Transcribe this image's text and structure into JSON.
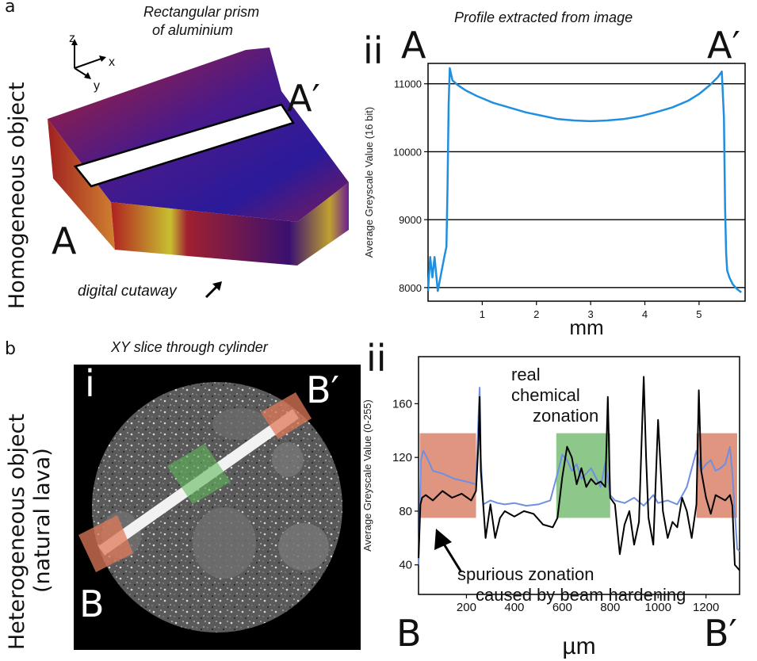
{
  "panels": {
    "a": {
      "letter": "a",
      "side_label": "Homogeneous object",
      "image_caption_line1": "Rectangular prism",
      "image_caption_line2": "of aluminium",
      "cutaway_label": "digital cutaway",
      "axis_z": "z",
      "axis_x": "x",
      "axis_y": "y",
      "point_A": "A",
      "point_A_prime": "A′",
      "chart_caption": "Profile extracted from image",
      "chart_roman": "ii"
    },
    "b": {
      "letter": "b",
      "side_label_line1": "Heterogeneous object",
      "side_label_line2": "(natural lava)",
      "image_caption": "XY slice through cylinder",
      "image_roman": "i",
      "point_B": "B",
      "point_B_prime": "B′",
      "chart_roman": "ii",
      "annotation_real_line1": "real",
      "annotation_real_line2": "chemical",
      "annotation_real_line3": "zonation",
      "annotation_spurious_line1": "spurious zonation",
      "annotation_spurious_line2": "caused by beam hardening"
    }
  },
  "colors": {
    "blue_line": "#1f8fdf",
    "lava_blue": "#6f8fe0",
    "highlight_orange": "#d9826a",
    "highlight_green": "#79bd75",
    "prism_dark": "#3a1070"
  },
  "chart_data": [
    {
      "type": "line",
      "ylabel": "Average Greyscale Value (16 bit)",
      "xlabel": "mm",
      "x_ticks": [
        "1",
        "2",
        "3",
        "4",
        "5"
      ],
      "y_ticks": [
        "8000",
        "9000",
        "10000",
        "11000"
      ],
      "xlim": [
        0,
        5.85
      ],
      "ylim": [
        7800,
        11300
      ],
      "gridlines": [
        8000,
        9000,
        10000,
        11000
      ],
      "series": [
        {
          "x": [
            0.0,
            0.04,
            0.08,
            0.12,
            0.18,
            0.24,
            0.3,
            0.34,
            0.36,
            0.38,
            0.4,
            0.45,
            0.55,
            0.7,
            0.9,
            1.2,
            1.5,
            1.8,
            2.1,
            2.4,
            2.7,
            3.0,
            3.3,
            3.6,
            3.9,
            4.2,
            4.5,
            4.8,
            5.0,
            5.2,
            5.35,
            5.42,
            5.46,
            5.48,
            5.5,
            5.52,
            5.56,
            5.62,
            5.7,
            5.78
          ],
          "y": [
            7950,
            8450,
            8150,
            8450,
            7950,
            8200,
            8450,
            8600,
            9500,
            10700,
            11230,
            11050,
            10980,
            10900,
            10820,
            10720,
            10650,
            10580,
            10530,
            10480,
            10460,
            10450,
            10460,
            10480,
            10520,
            10580,
            10650,
            10750,
            10850,
            10980,
            11100,
            11180,
            10500,
            9200,
            8500,
            8250,
            8150,
            8050,
            7980,
            7930
          ]
        }
      ]
    },
    {
      "type": "line",
      "ylabel": "Average Greyscale Value (0-255)",
      "xlabel": "µm",
      "x_ticks": [
        "200",
        "400",
        "600",
        "800",
        "1000",
        "1200"
      ],
      "y_ticks": [
        "40",
        "80",
        "120",
        "160"
      ],
      "xlim": [
        0,
        1340
      ],
      "ylim": [
        18,
        195
      ],
      "highlights": [
        {
          "x": [
            5,
            240
          ],
          "y": [
            75,
            138
          ],
          "color": "orange"
        },
        {
          "x": [
            575,
            800
          ],
          "y": [
            75,
            138
          ],
          "color": "green"
        },
        {
          "x": [
            1160,
            1330
          ],
          "y": [
            75,
            138
          ],
          "color": "orange"
        }
      ],
      "series": [
        {
          "color": "blue",
          "x": [
            0,
            10,
            20,
            40,
            60,
            100,
            150,
            200,
            240,
            250,
            255,
            260,
            270,
            300,
            330,
            360,
            400,
            450,
            500,
            550,
            580,
            600,
            620,
            640,
            660,
            680,
            700,
            720,
            740,
            760,
            780,
            800,
            820,
            860,
            900,
            940,
            980,
            1000,
            1040,
            1080,
            1120,
            1160,
            1180,
            1200,
            1220,
            1240,
            1260,
            1280,
            1300,
            1310,
            1320,
            1330,
            1340
          ],
          "y": [
            40,
            118,
            125,
            118,
            110,
            108,
            104,
            102,
            100,
            150,
            172,
            120,
            85,
            88,
            86,
            85,
            86,
            84,
            85,
            88,
            108,
            122,
            118,
            110,
            115,
            104,
            108,
            112,
            105,
            98,
            116,
            92,
            88,
            86,
            90,
            84,
            92,
            86,
            88,
            85,
            98,
            125,
            110,
            115,
            118,
            110,
            112,
            115,
            128,
            108,
            80,
            52,
            50
          ]
        },
        {
          "color": "black",
          "x": [
            0,
            8,
            15,
            30,
            60,
            100,
            140,
            180,
            220,
            240,
            250,
            255,
            260,
            280,
            300,
            320,
            340,
            360,
            400,
            440,
            480,
            520,
            560,
            580,
            600,
            620,
            640,
            660,
            680,
            700,
            720,
            740,
            760,
            780,
            790,
            800,
            820,
            840,
            860,
            880,
            900,
            920,
            940,
            950,
            960,
            980,
            1000,
            1020,
            1040,
            1060,
            1080,
            1100,
            1120,
            1140,
            1160,
            1170,
            1180,
            1200,
            1220,
            1240,
            1260,
            1280,
            1300,
            1310,
            1320,
            1330,
            1340
          ],
          "y": [
            45,
            85,
            90,
            92,
            88,
            95,
            90,
            93,
            88,
            95,
            130,
            165,
            110,
            60,
            85,
            60,
            75,
            80,
            76,
            80,
            78,
            70,
            68,
            75,
            105,
            128,
            120,
            100,
            112,
            98,
            104,
            100,
            102,
            98,
            165,
            90,
            85,
            48,
            70,
            80,
            55,
            72,
            180,
            120,
            75,
            55,
            148,
            80,
            60,
            72,
            68,
            90,
            80,
            60,
            85,
            170,
            110,
            90,
            78,
            92,
            90,
            88,
            92,
            84,
            40,
            38,
            36
          ]
        }
      ]
    }
  ]
}
